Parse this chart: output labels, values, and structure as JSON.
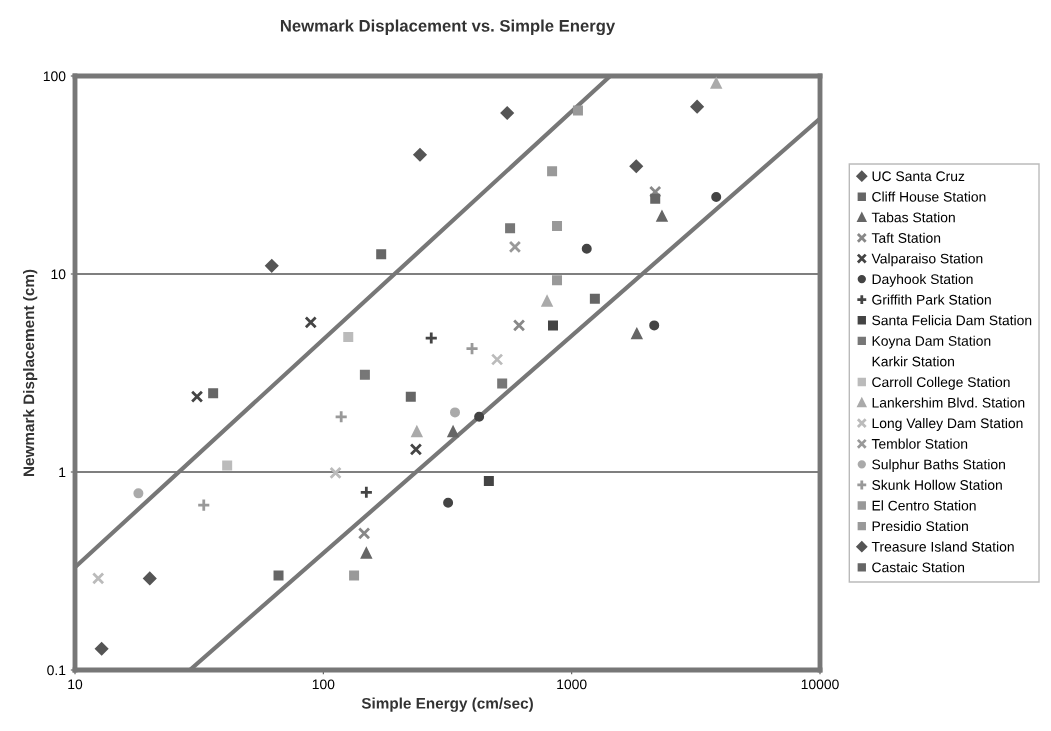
{
  "chart_data": {
    "type": "scatter",
    "title": "Newmark Displacement vs. Simple Energy",
    "xlabel": "Simple Energy (cm/sec)",
    "ylabel": "Newmark Displacement (cm)",
    "log": "xy",
    "xlim": [
      10,
      10000
    ],
    "ylim": [
      0.1,
      100
    ],
    "xticks": [
      10,
      100,
      1000,
      10000
    ],
    "yticks": [
      0.1,
      1,
      10,
      100
    ],
    "grid": "y",
    "legend": "right",
    "series": [
      {
        "name": "UC Santa Cruz",
        "color": "#555555",
        "marker": "diamond",
        "x": [
          62,
          245,
          1820,
          20
        ],
        "values": [
          11,
          40,
          35,
          0.29
        ]
      },
      {
        "name": "Cliff House Station",
        "color": "#666666",
        "marker": "square",
        "x": [
          171,
          36,
          225
        ],
        "values": [
          12.6,
          2.5,
          2.4
        ]
      },
      {
        "name": "Tabas Station",
        "color": "#666666",
        "marker": "triangle",
        "x": [
          2310,
          1830,
          149,
          333
        ],
        "values": [
          19.6,
          5.0,
          0.39,
          1.6
        ]
      },
      {
        "name": "Taft Station",
        "color": "#888888",
        "marker": "cross",
        "x": [
          614,
          146,
          2170
        ],
        "values": [
          5.5,
          0.49,
          26
        ]
      },
      {
        "name": "Valparaiso Station",
        "color": "#444444",
        "marker": "cross",
        "x": [
          89,
          236,
          31
        ],
        "values": [
          5.7,
          1.3,
          2.4
        ]
      },
      {
        "name": "Dayhook Station",
        "color": "#444444",
        "marker": "circle",
        "x": [
          1150,
          2150,
          3820,
          424,
          318
        ],
        "values": [
          13.4,
          5.5,
          24.5,
          1.9,
          0.7
        ]
      },
      {
        "name": "Griffith Park Station",
        "color": "#444444",
        "marker": "plus",
        "x": [
          272,
          149
        ],
        "values": [
          4.75,
          0.79
        ]
      },
      {
        "name": "Santa Felicia Dam Station",
        "color": "#444444",
        "marker": "square",
        "x": [
          841,
          464
        ],
        "values": [
          5.5,
          0.9
        ]
      },
      {
        "name": "Koyna Dam Station",
        "color": "#777777",
        "marker": "square",
        "x": [
          147,
          525,
          565
        ],
        "values": [
          3.1,
          2.8,
          17
        ]
      },
      {
        "name": "Karkir Station"
      },
      {
        "name": "Carroll College Station",
        "color": "#bbbbbb",
        "marker": "square",
        "x": [
          126,
          41
        ],
        "values": [
          4.8,
          1.08
        ]
      },
      {
        "name": "Lankershim Blvd. Station",
        "color": "#aaaaaa",
        "marker": "triangle",
        "x": [
          3820,
          796,
          238
        ],
        "values": [
          92,
          7.3,
          1.6
        ]
      },
      {
        "name": "Long Valley Dam Station",
        "color": "#bbbbbb",
        "marker": "cross",
        "x": [
          501,
          112,
          12.4
        ],
        "values": [
          3.7,
          0.99,
          0.29
        ]
      },
      {
        "name": "Temblor Station",
        "color": "#999999",
        "marker": "cross",
        "x": [
          591
        ],
        "values": [
          13.7
        ]
      },
      {
        "name": "Sulphur Baths Station",
        "color": "#aaaaaa",
        "marker": "circle",
        "x": [
          18,
          339
        ],
        "values": [
          0.78,
          2.0
        ]
      },
      {
        "name": "Skunk Hollow Station",
        "color": "#999999",
        "marker": "plus",
        "x": [
          397,
          118,
          33
        ],
        "values": [
          4.2,
          1.9,
          0.68
        ]
      },
      {
        "name": "El Centro Station",
        "color": "#999999",
        "marker": "square",
        "x": [
          873,
          873,
          1060
        ],
        "values": [
          17.5,
          9.3,
          67
        ]
      },
      {
        "name": "Presidio Station",
        "color": "#999999",
        "marker": "square",
        "x": [
          834,
          133
        ],
        "values": [
          33,
          0.3
        ]
      },
      {
        "name": "Treasure Island Station",
        "color": "#555555",
        "marker": "diamond",
        "x": [
          550,
          3200,
          12.8
        ],
        "values": [
          65,
          70,
          0.128
        ]
      },
      {
        "name": "Castaic Station",
        "color": "#666666",
        "marker": "square",
        "x": [
          1240,
          66,
          2170
        ],
        "values": [
          7.5,
          0.3,
          24
        ]
      },
      {
        "type": "line",
        "color": "#777777",
        "x": [
          10,
          1430
        ],
        "values": [
          0.33,
          100
        ]
      },
      {
        "type": "line",
        "color": "#777777",
        "x": [
          29,
          10000
        ],
        "values": [
          0.1,
          61
        ]
      }
    ]
  }
}
